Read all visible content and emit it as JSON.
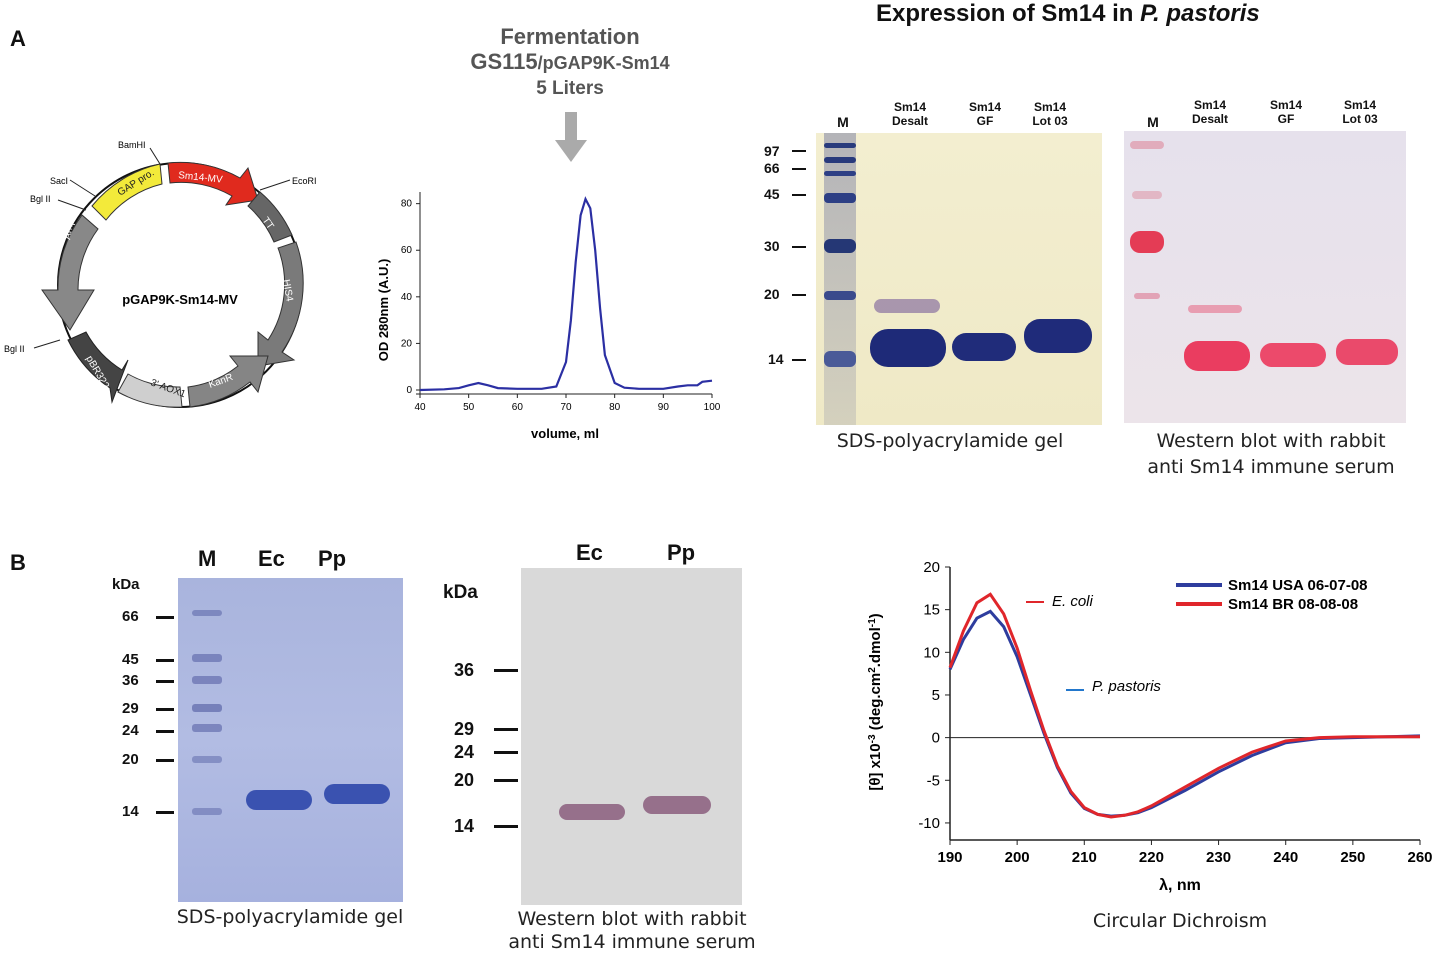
{
  "panel_a": {
    "letter": "A",
    "figure_title_prefix": "Expression of Sm14 in ",
    "figure_title_organism": "P. pastoris",
    "plasmid": {
      "name": "pGAP9K-Sm14-MV",
      "sites": [
        "BamHI",
        "SacI",
        "Bgl II",
        "EcoRI",
        "Bgl II"
      ],
      "features": [
        "GAP pro.",
        "Sm14-MV",
        "TT",
        "HIS4",
        "KanR",
        "3' AOX1",
        "pBR322",
        "AmpR"
      ]
    },
    "fermentation": {
      "line1": "Fermentation",
      "line2_strain": "GS115",
      "line2_vector": "/pGAP9K-Sm14",
      "line3": "5 Liters"
    },
    "chromatogram": {
      "chart_data": {
        "type": "line",
        "title": "",
        "xlabel": "volume, ml",
        "ylabel": "OD 280nm (A.U.)",
        "xlim": [
          40,
          100
        ],
        "ylim": [
          0,
          85
        ],
        "xticks": [
          40,
          50,
          60,
          70,
          80,
          90,
          100
        ],
        "yticks": [
          0,
          20,
          40,
          60,
          80
        ],
        "series": [
          {
            "name": "OD 280nm",
            "color": "#2b2fa3",
            "x": [
              40,
              45,
              48,
              50,
              52,
              54,
              56,
              60,
              65,
              68,
              70,
              71,
              72,
              73,
              74,
              75,
              76,
              77,
              78,
              80,
              82,
              85,
              90,
              93,
              95,
              97,
              98,
              100
            ],
            "y": [
              0,
              0.3,
              0.8,
              2,
              3,
              2,
              0.8,
              0.5,
              0.5,
              1.5,
              12,
              30,
              55,
              75,
              82,
              78,
              60,
              35,
              15,
              3,
              1,
              0.5,
              0.5,
              1.5,
              2,
              2,
              3.5,
              4
            ]
          }
        ]
      }
    },
    "sds_gel": {
      "marker_label": "M",
      "lanes": [
        {
          "line1": "Sm14",
          "line2": "Desalt"
        },
        {
          "line1": "Sm14",
          "line2": "GF"
        },
        {
          "line1": "Sm14",
          "line2": "Lot 03"
        }
      ],
      "mw_labels": [
        "97",
        "66",
        "45",
        "30",
        "20",
        "14"
      ],
      "caption": "SDS-polyacrylamide gel"
    },
    "western_blot": {
      "marker_label": "M",
      "lanes": [
        {
          "line1": "Sm14",
          "line2": "Desalt"
        },
        {
          "line1": "Sm14",
          "line2": "GF"
        },
        {
          "line1": "Sm14",
          "line2": "Lot 03"
        }
      ],
      "caption_line1": "Western blot with rabbit",
      "caption_line2": "anti Sm14 immune serum"
    }
  },
  "panel_b": {
    "letter": "B",
    "sds_gel": {
      "unit": "kDa",
      "lanes": [
        "M",
        "Ec",
        "Pp"
      ],
      "mw_labels": [
        "66",
        "45",
        "36",
        "29",
        "24",
        "20",
        "14"
      ],
      "caption": "SDS-polyacrylamide gel"
    },
    "western_blot": {
      "unit": "kDa",
      "lanes": [
        "Ec",
        "Pp"
      ],
      "mw_labels": [
        "36",
        "29",
        "24",
        "20",
        "14"
      ],
      "caption_line1": "Western blot with rabbit",
      "caption_line2": "anti Sm14 immune serum"
    },
    "cd": {
      "caption": "Circular Dichroism",
      "annotation_ecoli": "E. coli",
      "annotation_ppastoris": "P. pastoris",
      "chart_data": {
        "type": "line",
        "title": "",
        "xlabel": "λ, nm",
        "ylabel_pre": "[θ] x10",
        "ylabel_exp": "-3",
        "ylabel_post": " (deg.cm",
        "ylabel_exp2": "2",
        "ylabel_post2": ".dmol",
        "ylabel_exp3": "-1",
        "ylabel_end": ")",
        "xlim": [
          190,
          260
        ],
        "ylim": [
          -12,
          20
        ],
        "xticks": [
          190,
          200,
          210,
          220,
          230,
          240,
          250,
          260
        ],
        "yticks": [
          20,
          15,
          10,
          5,
          0,
          -5,
          -10
        ],
        "legend": "top-right",
        "series": [
          {
            "name": "Sm14 USA 06-07-08",
            "color": "#2e3d9e",
            "x": [
              190,
              192,
              194,
              196,
              198,
              200,
              202,
              204,
              206,
              208,
              210,
              212,
              214,
              216,
              218,
              220,
              225,
              230,
              235,
              240,
              245,
              250,
              255,
              260
            ],
            "y": [
              8,
              11.5,
              14,
              14.8,
              13,
              9.5,
              5,
              0.5,
              -3.5,
              -6.5,
              -8.3,
              -9,
              -9.2,
              -9.1,
              -8.8,
              -8.2,
              -6.2,
              -4,
              -2.1,
              -0.6,
              -0.1,
              0,
              0.1,
              0.2
            ]
          },
          {
            "name": "Sm14 BR 08-08-08",
            "color": "#e0262b",
            "x": [
              190,
              192,
              194,
              196,
              198,
              200,
              202,
              204,
              206,
              208,
              210,
              212,
              214,
              216,
              218,
              220,
              225,
              230,
              235,
              240,
              245,
              250,
              255,
              260
            ],
            "y": [
              8.2,
              12.5,
              15.8,
              16.8,
              14.5,
              10.5,
              5.5,
              0.8,
              -3.3,
              -6.3,
              -8.2,
              -9,
              -9.3,
              -9.1,
              -8.7,
              -8,
              -5.8,
              -3.6,
              -1.7,
              -0.4,
              0,
              0.1,
              0.1,
              0.1
            ]
          }
        ]
      }
    }
  }
}
